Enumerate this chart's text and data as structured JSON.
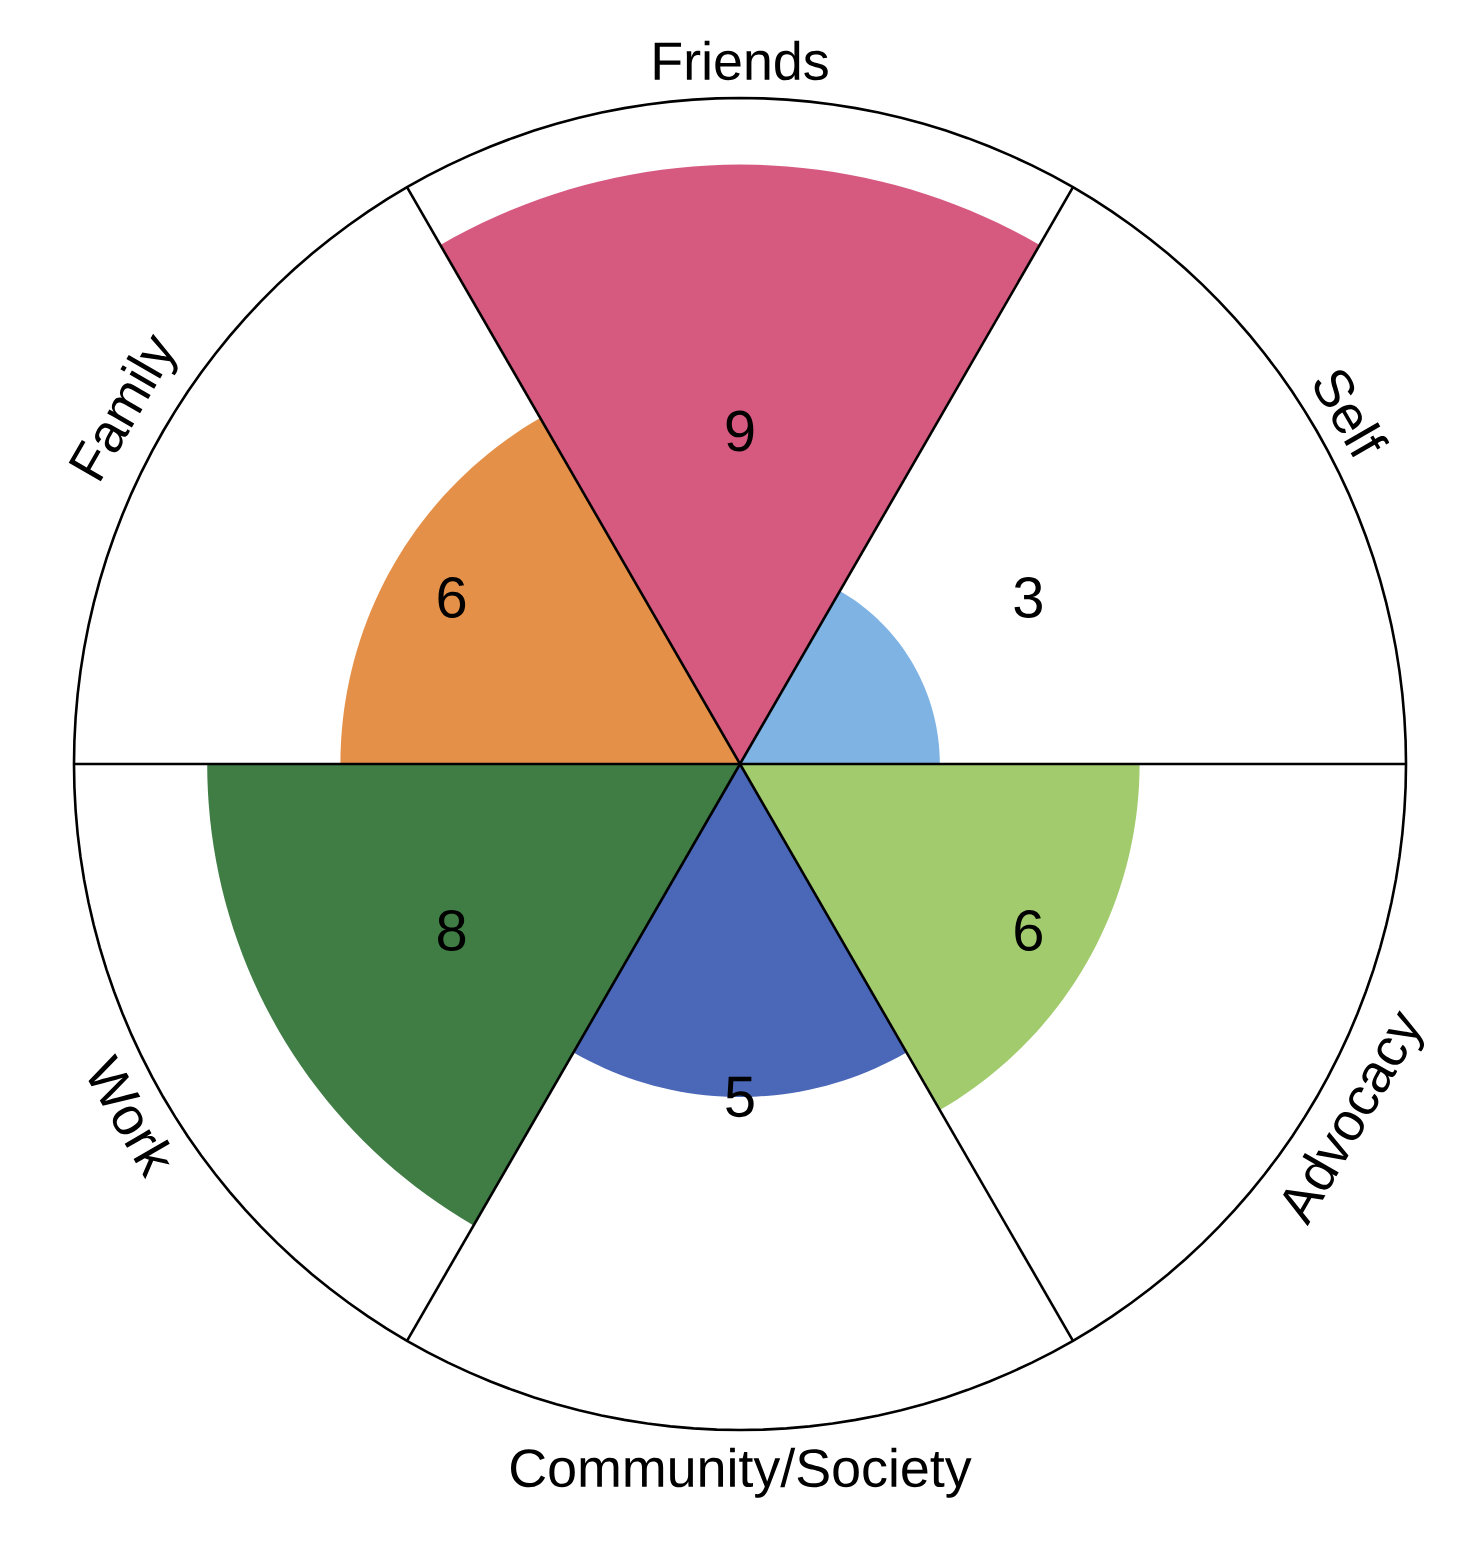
{
  "chart_data": {
    "type": "other",
    "categories": [
      "Friends",
      "Self",
      "Advocacy",
      "Community/Society",
      "Work",
      "Family"
    ],
    "values": [
      9,
      3,
      6,
      5,
      8,
      6
    ],
    "colors": [
      "#d65a80",
      "#7fb3e3",
      "#a2cb6e",
      "#4a67b8",
      "#3f7d45",
      "#e59048"
    ],
    "data_labels": true
  }
}
